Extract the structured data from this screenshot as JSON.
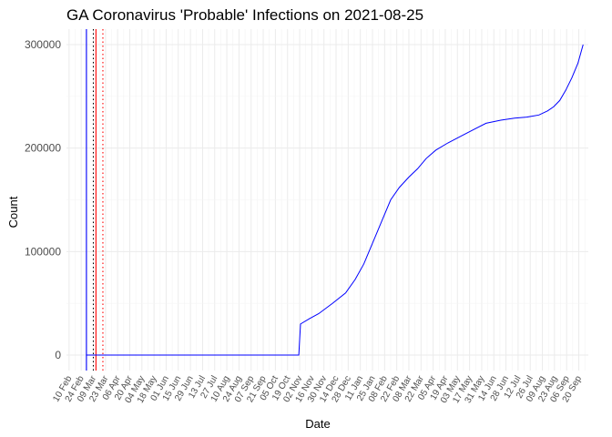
{
  "chart_data": {
    "type": "line",
    "title": "GA Coronavirus 'Probable' Infections on 2021-08-25",
    "xlabel": "Date",
    "ylabel": "Count",
    "x_axis_type": "date",
    "xlim": [
      "2020-02-07",
      "2021-10-01"
    ],
    "ylim": [
      -15000,
      315000
    ],
    "y_ticks": [
      0,
      100000,
      200000,
      300000
    ],
    "y_tick_labels": [
      "0",
      "100000",
      "200000",
      "300000"
    ],
    "x_tick_dates": [
      "2020-02-10",
      "2020-02-24",
      "2020-03-09",
      "2020-03-23",
      "2020-04-06",
      "2020-04-20",
      "2020-05-04",
      "2020-05-18",
      "2020-06-01",
      "2020-06-15",
      "2020-06-29",
      "2020-07-13",
      "2020-07-27",
      "2020-08-10",
      "2020-08-24",
      "2020-09-07",
      "2020-09-21",
      "2020-10-05",
      "2020-10-19",
      "2020-11-02",
      "2020-11-16",
      "2020-11-30",
      "2020-12-14",
      "2020-12-28",
      "2021-01-11",
      "2021-01-25",
      "2021-02-08",
      "2021-02-22",
      "2021-03-08",
      "2021-03-22",
      "2021-04-05",
      "2021-04-19",
      "2021-05-03",
      "2021-05-17",
      "2021-05-31",
      "2021-06-14",
      "2021-06-28",
      "2021-07-12",
      "2021-07-26",
      "2021-08-09",
      "2021-08-23",
      "2021-09-06",
      "2021-09-20"
    ],
    "x_tick_labels": [
      "10 Feb",
      "24 Feb",
      "09 Mar",
      "23 Mar",
      "06 Apr",
      "20 Apr",
      "04 May",
      "18 May",
      "01 Jun",
      "15 Jun",
      "29 Jun",
      "13 Jul",
      "27 Jul",
      "10 Aug",
      "24 Aug",
      "07 Sep",
      "21 Sep",
      "05 Oct",
      "19 Oct",
      "02 Nov",
      "16 Nov",
      "30 Nov",
      "14 Dec",
      "28 Dec",
      "11 Jan",
      "25 Jan",
      "08 Feb",
      "22 Feb",
      "08 Mar",
      "22 Mar",
      "05 Apr",
      "19 Apr",
      "03 May",
      "17 May",
      "31 May",
      "14 Jun",
      "28 Jun",
      "12 Jul",
      "26 Jul",
      "09 Aug",
      "23 Aug",
      "06 Sep",
      "20 Sep"
    ],
    "grid": true,
    "series": [
      {
        "color": "#0000ff",
        "points": [
          [
            "2020-03-01",
            0
          ],
          [
            "2020-11-01",
            0
          ],
          [
            "2020-11-03",
            30000
          ],
          [
            "2020-11-13",
            35000
          ],
          [
            "2020-11-24",
            40000
          ],
          [
            "2020-12-10",
            50000
          ],
          [
            "2020-12-25",
            60000
          ],
          [
            "2021-01-05",
            73000
          ],
          [
            "2021-01-15",
            88000
          ],
          [
            "2021-01-25",
            108000
          ],
          [
            "2021-02-05",
            130000
          ],
          [
            "2021-02-15",
            150000
          ],
          [
            "2021-02-25",
            162000
          ],
          [
            "2021-03-08",
            172000
          ],
          [
            "2021-03-18",
            180000
          ],
          [
            "2021-03-28",
            190000
          ],
          [
            "2021-04-08",
            198000
          ],
          [
            "2021-04-22",
            205000
          ],
          [
            "2021-05-08",
            212000
          ],
          [
            "2021-05-22",
            218000
          ],
          [
            "2021-06-05",
            224000
          ],
          [
            "2021-06-22",
            227000
          ],
          [
            "2021-07-08",
            229000
          ],
          [
            "2021-07-22",
            230000
          ],
          [
            "2021-08-05",
            232000
          ],
          [
            "2021-08-15",
            236000
          ],
          [
            "2021-08-22",
            240000
          ],
          [
            "2021-08-29",
            246000
          ],
          [
            "2021-09-05",
            256000
          ],
          [
            "2021-09-12",
            268000
          ],
          [
            "2021-09-19",
            282000
          ],
          [
            "2021-09-25",
            300000
          ]
        ]
      }
    ],
    "vertical_lines": [
      {
        "x": "2020-03-01",
        "color": "#0000ff",
        "style": "solid"
      },
      {
        "x": "2020-03-09",
        "color": "#000000",
        "style": "dotted"
      },
      {
        "x": "2020-03-12",
        "color": "#ff0000",
        "style": "solid"
      },
      {
        "x": "2020-03-20",
        "color": "#ff0000",
        "style": "dotted"
      }
    ]
  }
}
